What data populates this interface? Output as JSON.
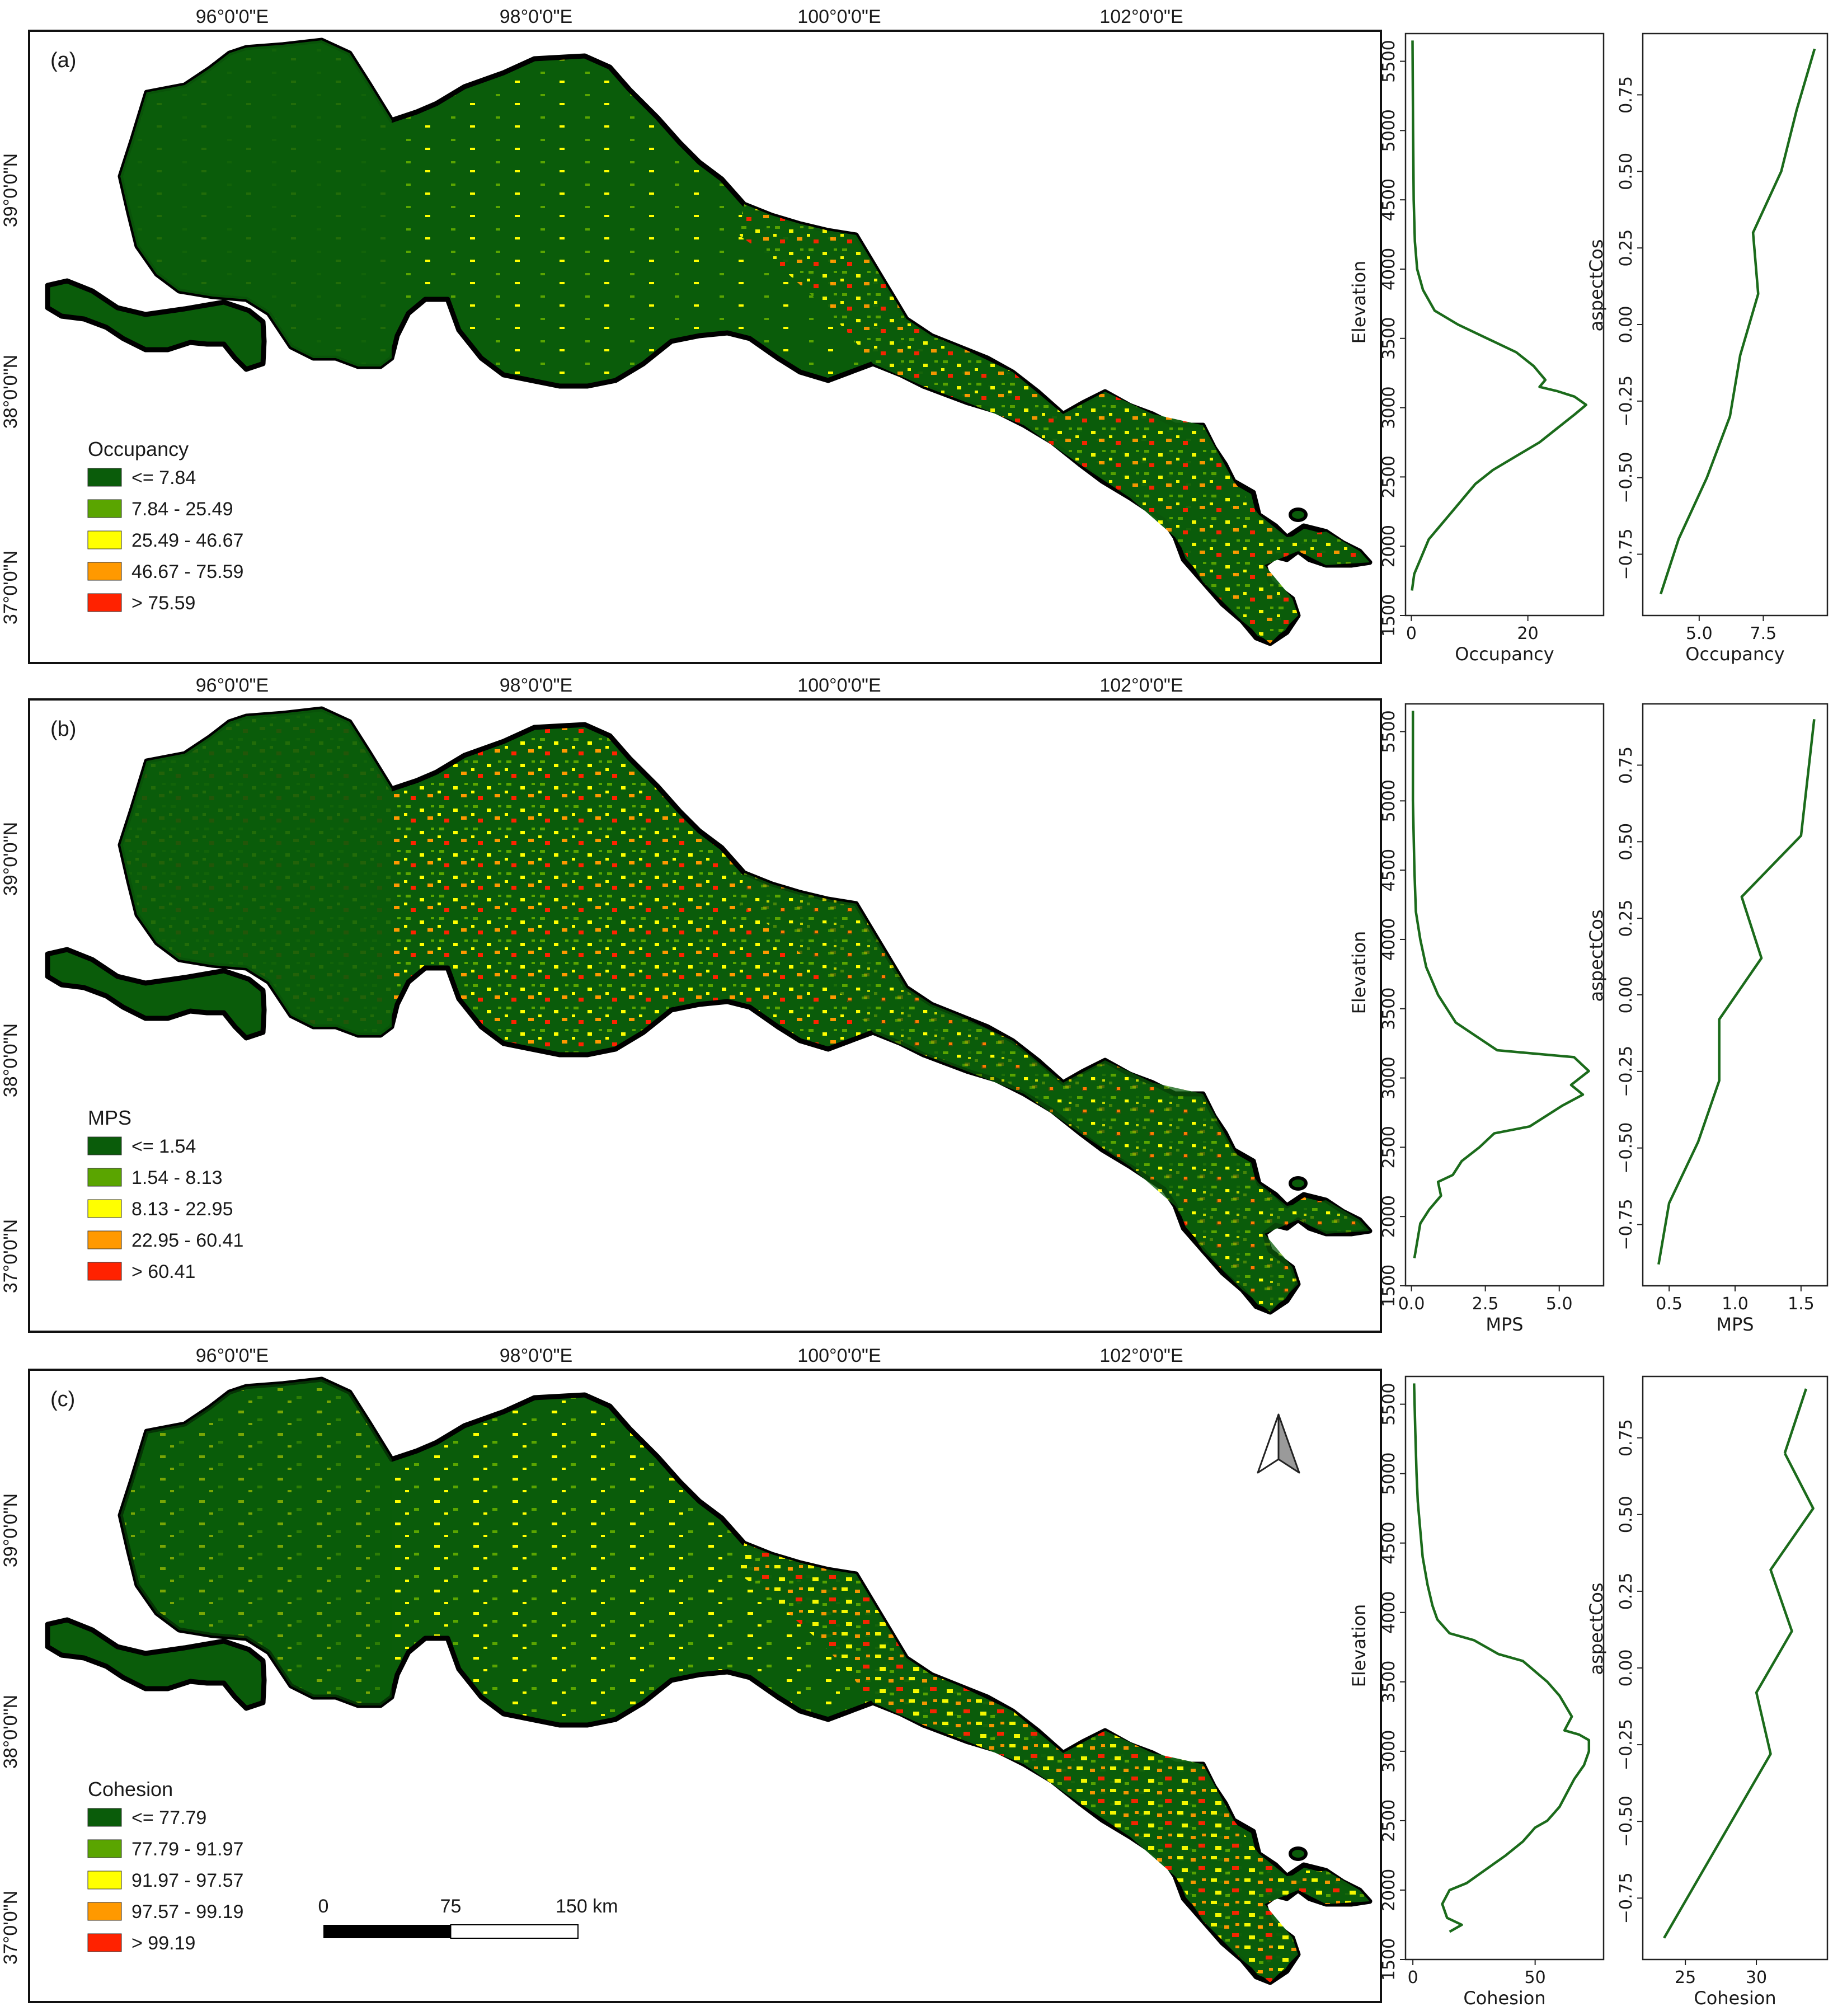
{
  "lon_labels": [
    "96°0'0\"E",
    "98°0'0\"E",
    "100°0'0\"E",
    "102°0'0\"E"
  ],
  "lat_labels": [
    "39°0'0\"N",
    "38°0'0\"N",
    "37°0'0\"N"
  ],
  "scale_bar": {
    "ticks": [
      "0",
      "75",
      "150 km"
    ]
  },
  "north_arrow": "north-arrow-icon",
  "colors": {
    "c1": "#0a5c0a",
    "c2": "#5aa500",
    "c3": "#ffff00",
    "c4": "#ff9900",
    "c5": "#ff2200",
    "curve": "#1b6b1b"
  },
  "panels": [
    {
      "tag": "(a)",
      "legend_title": "Occupancy",
      "classes": [
        "<= 7.84",
        "7.84 - 25.49",
        "25.49 - 46.67",
        "46.67 - 75.59",
        "> 75.59"
      ],
      "elev_plot": {
        "xlabel": "Occupancy",
        "ylabel": "Elevation",
        "xticks": [
          "0",
          "20"
        ],
        "yticks": [
          "1500",
          "2000",
          "2500",
          "3000",
          "3500",
          "4000",
          "4500",
          "5000",
          "5500"
        ]
      },
      "aspect_plot": {
        "xlabel": "Occupancy",
        "ylabel": "aspectCos",
        "xticks": [
          "5.0",
          "7.5"
        ],
        "yticks": [
          "−0.75",
          "−0.50",
          "−0.25",
          "0.00",
          "0.25",
          "0.50",
          "0.75"
        ]
      }
    },
    {
      "tag": "(b)",
      "legend_title": "MPS",
      "classes": [
        "<= 1.54",
        "1.54 - 8.13",
        "8.13 - 22.95",
        "22.95 - 60.41",
        "> 60.41"
      ],
      "elev_plot": {
        "xlabel": "MPS",
        "ylabel": "Elevation",
        "xticks": [
          "0.0",
          "2.5",
          "5.0"
        ],
        "yticks": [
          "1500",
          "2000",
          "2500",
          "3000",
          "3500",
          "4000",
          "4500",
          "5000",
          "5500"
        ]
      },
      "aspect_plot": {
        "xlabel": "MPS",
        "ylabel": "aspectCos",
        "xticks": [
          "0.5",
          "1.0",
          "1.5"
        ],
        "yticks": [
          "−0.75",
          "−0.50",
          "−0.25",
          "0.00",
          "0.25",
          "0.50",
          "0.75"
        ]
      }
    },
    {
      "tag": "(c)",
      "legend_title": "Cohesion",
      "classes": [
        "<= 77.79",
        "77.79 - 91.97",
        "91.97 - 97.57",
        "97.57 - 99.19",
        "> 99.19"
      ],
      "elev_plot": {
        "xlabel": "Cohesion",
        "ylabel": "Elevation",
        "xticks": [
          "0",
          "50"
        ],
        "yticks": [
          "1500",
          "2000",
          "2500",
          "3000",
          "3500",
          "4000",
          "4500",
          "5000",
          "5500"
        ]
      },
      "aspect_plot": {
        "xlabel": "Cohesion",
        "ylabel": "aspectCos",
        "xticks": [
          "25",
          "30"
        ],
        "yticks": [
          "−0.75",
          "−0.50",
          "−0.25",
          "0.00",
          "0.25",
          "0.50",
          "0.75"
        ]
      }
    }
  ],
  "chart_data": [
    {
      "panel": "(a)",
      "type": "line",
      "xlabel": "Occupancy",
      "ylabel": "Elevation",
      "ylim": [
        1500,
        5700
      ],
      "xlim": [
        -1,
        33
      ],
      "series": [
        {
          "x": [
            0.2,
            0.3,
            0.4,
            0.6,
            1,
            2,
            4,
            8,
            13,
            18,
            21,
            23,
            22,
            25,
            28,
            30,
            28,
            25,
            22,
            18,
            14,
            11,
            9,
            7,
            5,
            3,
            1.5,
            0.5,
            0.1
          ],
          "y": [
            5650,
            5000,
            4500,
            4200,
            4000,
            3850,
            3700,
            3600,
            3500,
            3400,
            3300,
            3200,
            3150,
            3120,
            3080,
            3020,
            2950,
            2850,
            2750,
            2650,
            2550,
            2450,
            2350,
            2250,
            2150,
            2050,
            1900,
            1800,
            1680
          ]
        }
      ]
    },
    {
      "panel": "(a)",
      "type": "line",
      "xlabel": "Occupancy",
      "ylabel": "aspectCos",
      "ylim": [
        -0.95,
        0.95
      ],
      "xlim": [
        2.8,
        10
      ],
      "series": [
        {
          "x": [
            3.5,
            4.2,
            5.3,
            6.2,
            6.6,
            7.3,
            7.1,
            8.2,
            8.8,
            9.5
          ],
          "y": [
            -0.88,
            -0.7,
            -0.5,
            -0.3,
            -0.1,
            0.1,
            0.3,
            0.5,
            0.7,
            0.9
          ]
        }
      ]
    },
    {
      "panel": "(b)",
      "type": "line",
      "xlabel": "MPS",
      "ylabel": "Elevation",
      "ylim": [
        1500,
        5700
      ],
      "xlim": [
        -0.2,
        6.5
      ],
      "series": [
        {
          "x": [
            0.05,
            0.05,
            0.1,
            0.15,
            0.3,
            0.5,
            0.9,
            1.5,
            2.9,
            5.5,
            6.0,
            5.4,
            5.8,
            5.1,
            4.0,
            2.8,
            2.3,
            1.7,
            1.4,
            0.9,
            1.0,
            0.6,
            0.3,
            0.1
          ],
          "y": [
            5650,
            5000,
            4500,
            4200,
            4000,
            3800,
            3600,
            3400,
            3200,
            3150,
            3050,
            2950,
            2880,
            2800,
            2650,
            2600,
            2500,
            2400,
            2300,
            2250,
            2150,
            2050,
            1950,
            1700
          ]
        }
      ]
    },
    {
      "panel": "(b)",
      "type": "line",
      "xlabel": "MPS",
      "ylabel": "aspectCos",
      "ylim": [
        -0.95,
        0.95
      ],
      "xlim": [
        0.3,
        1.7
      ],
      "series": [
        {
          "x": [
            0.42,
            0.5,
            0.72,
            0.88,
            0.88,
            1.2,
            1.05,
            1.5,
            1.6
          ],
          "y": [
            -0.88,
            -0.68,
            -0.48,
            -0.28,
            -0.08,
            0.12,
            0.32,
            0.52,
            0.9
          ]
        }
      ]
    },
    {
      "panel": "(c)",
      "type": "line",
      "xlabel": "Cohesion",
      "ylabel": "Elevation",
      "ylim": [
        1500,
        5700
      ],
      "xlim": [
        -3,
        78
      ],
      "series": [
        {
          "x": [
            0.5,
            1,
            1.5,
            2,
            3,
            4,
            6,
            8,
            10,
            15,
            25,
            35,
            45,
            55,
            60,
            65,
            62,
            68,
            72,
            72,
            70,
            66,
            63,
            60,
            55,
            50,
            45,
            38,
            30,
            22,
            15,
            12,
            14,
            20,
            15
          ],
          "y": [
            5650,
            5300,
            5000,
            4800,
            4600,
            4400,
            4200,
            4050,
            3950,
            3850,
            3800,
            3700,
            3650,
            3500,
            3400,
            3250,
            3150,
            3120,
            3080,
            3000,
            2900,
            2800,
            2700,
            2600,
            2500,
            2450,
            2350,
            2250,
            2150,
            2050,
            2000,
            1900,
            1800,
            1750,
            1700
          ]
        }
      ]
    },
    {
      "panel": "(c)",
      "type": "line",
      "xlabel": "Cohesion",
      "ylabel": "aspectCos",
      "ylim": [
        -0.95,
        0.95
      ],
      "xlim": [
        22,
        35
      ],
      "series": [
        {
          "x": [
            23.5,
            26,
            28.5,
            31,
            30,
            32.5,
            31,
            34,
            32
          ],
          "y": [
            -0.88,
            -0.68,
            -0.48,
            -0.28,
            -0.08,
            0.12,
            0.32,
            0.52,
            0.7
          ]
        }
      ]
    },
    {
      "panel": "(c)",
      "type": "line",
      "series": [
        {
          "x": [
            32,
            33.5
          ],
          "y": [
            0.7,
            0.91
          ]
        }
      ]
    }
  ]
}
